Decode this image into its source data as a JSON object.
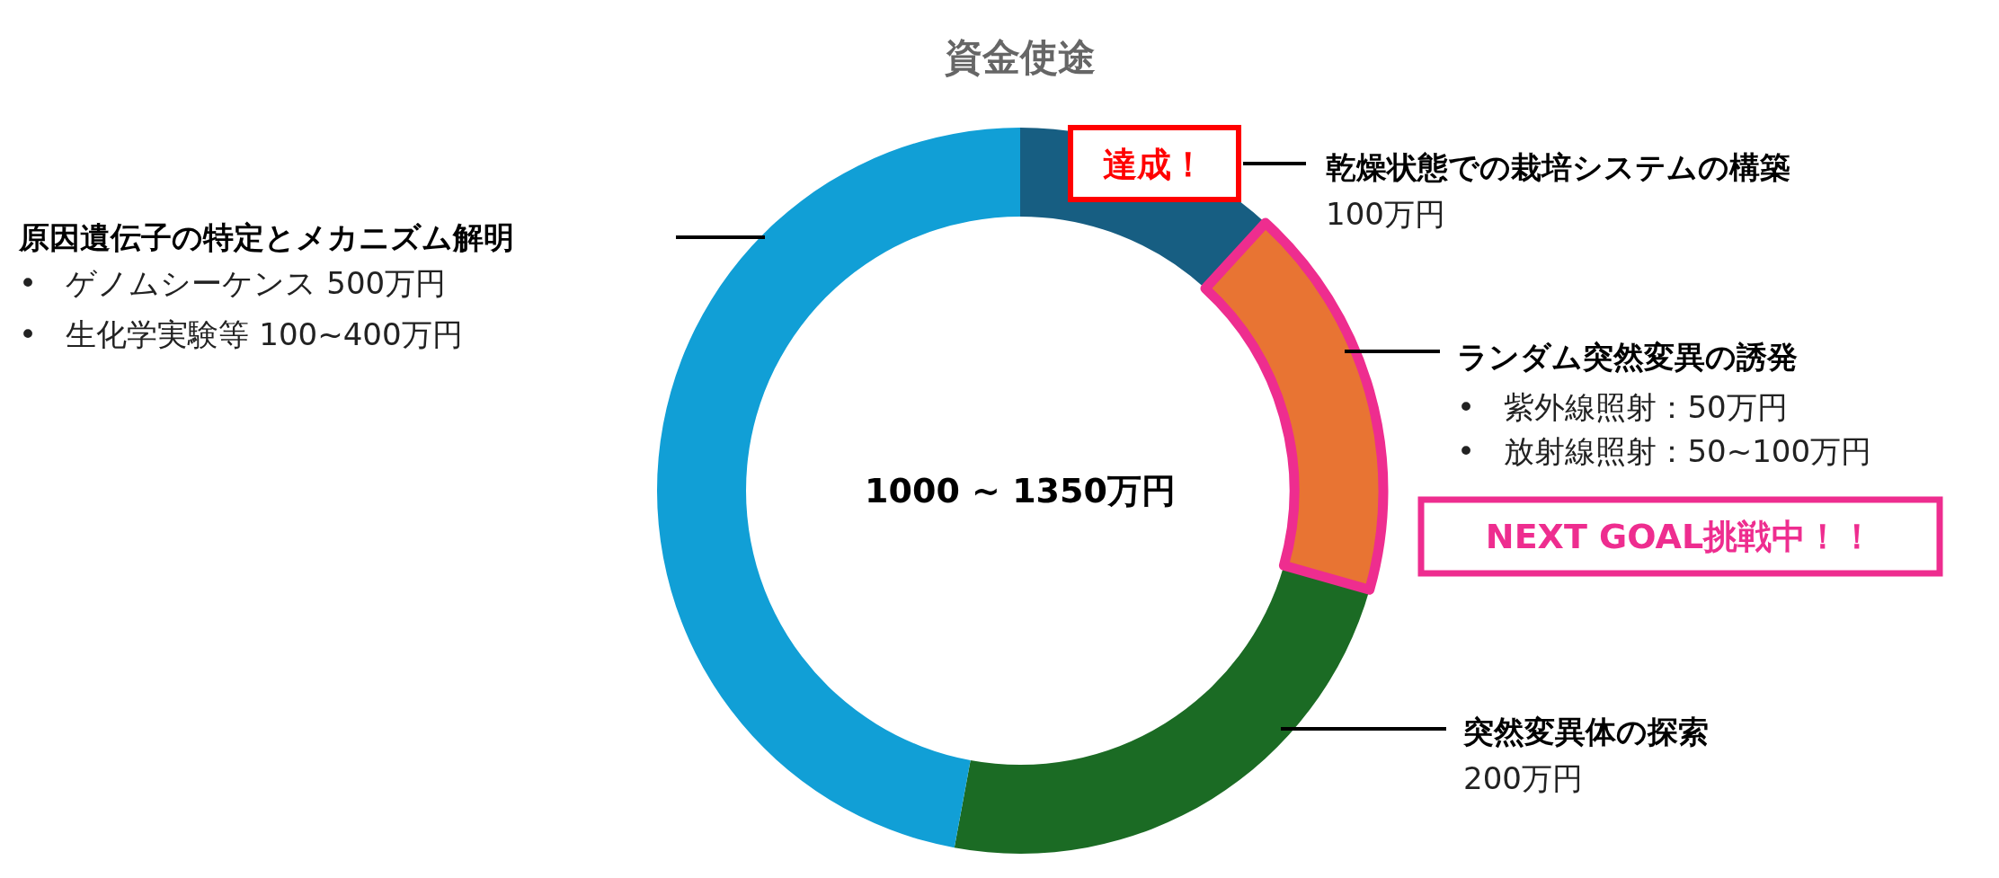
{
  "chart_data": {
    "type": "donut",
    "title": "資金使途",
    "categories": [
      "乾燥状態での栽培システムの構築",
      "ランダム突然変異の誘発",
      "突然変異体の探索",
      "原因遺伝子の特定とメカニズム解明"
    ],
    "values": [
      11.8,
      17.6,
      23.5,
      47.1
    ],
    "colors": [
      "#175e82",
      "#e87433",
      "#1b6b24",
      "#119fd6"
    ],
    "annotations": [
      "100万円",
      "•   紫外線照射：50万円",
      "•   放射線照射：50~100万円",
      "200万円",
      "•   ゲノムシーケンス 500万円",
      "•   生化学実験等 100~400万円",
      "達成！",
      "NEXT GOAL挑戦中！！",
      "1000 ~ 1350万円"
    ]
  }
}
